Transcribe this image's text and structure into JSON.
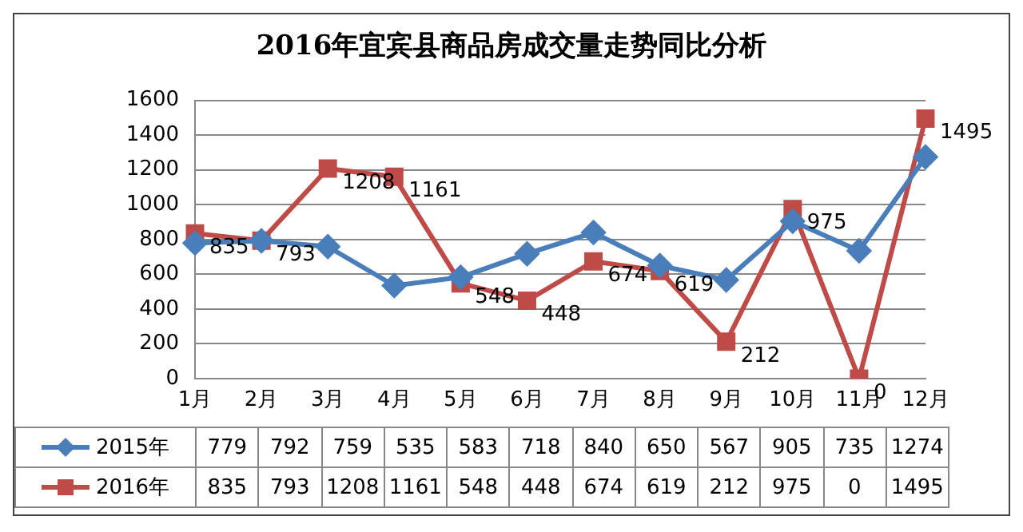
{
  "chart_data": {
    "type": "line",
    "title": "2016年宜宾县商品房成交量走势同比分析",
    "categories": [
      "1月",
      "2月",
      "3月",
      "4月",
      "5月",
      "6月",
      "7月",
      "8月",
      "9月",
      "10月",
      "11月",
      "12月"
    ],
    "series": [
      {
        "name": "2015年",
        "color": "#4a7ebb",
        "marker": "diamond",
        "values": [
          779,
          792,
          759,
          535,
          583,
          718,
          840,
          650,
          567,
          905,
          735,
          1274
        ]
      },
      {
        "name": "2016年",
        "color": "#be4b48",
        "marker": "square",
        "values": [
          835,
          793,
          1208,
          1161,
          548,
          448,
          674,
          619,
          212,
          975,
          0,
          1495
        ]
      }
    ],
    "annotations": [
      {
        "text": "835",
        "x": "1月",
        "y": 835
      },
      {
        "text": "793",
        "x": "2月",
        "y": 793
      },
      {
        "text": "1208",
        "x": "3月",
        "y": 1208
      },
      {
        "text": "1161",
        "x": "4月",
        "y": 1161
      },
      {
        "text": "548",
        "x": "5月",
        "y": 548
      },
      {
        "text": "448",
        "x": "6月",
        "y": 448
      },
      {
        "text": "674",
        "x": "7月",
        "y": 674
      },
      {
        "text": "619",
        "x": "8月",
        "y": 619
      },
      {
        "text": "212",
        "x": "9月",
        "y": 212
      },
      {
        "text": "975",
        "x": "10月",
        "y": 975
      },
      {
        "text": "0",
        "x": "11月",
        "y": 0
      },
      {
        "text": "1495",
        "x": "12月",
        "y": 1495
      }
    ],
    "ylim": [
      0,
      1600
    ],
    "yticks": [
      0,
      200,
      400,
      600,
      800,
      1000,
      1200,
      1400,
      1600
    ],
    "grid": "y",
    "legend": "bottom",
    "data_labels": true,
    "line_style": "solid"
  }
}
